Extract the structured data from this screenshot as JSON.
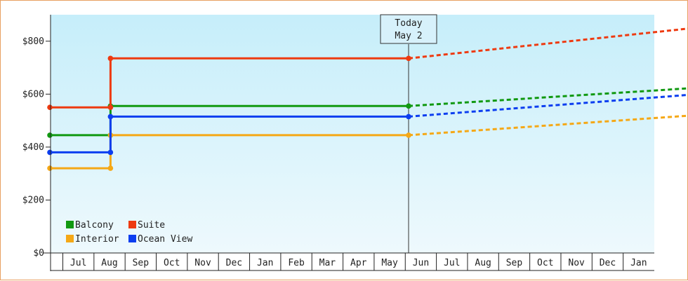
{
  "chart_data": {
    "type": "line",
    "title": "",
    "xlabel": "",
    "ylabel": "",
    "ylim": [
      0,
      900
    ],
    "yticks": [
      0,
      200,
      400,
      600,
      800
    ],
    "ytick_labels": [
      "$0",
      "$200",
      "$400",
      "$600",
      "$800"
    ],
    "month_labels": [
      "Jul",
      "Aug",
      "Sep",
      "Oct",
      "Nov",
      "Dec",
      "Jan",
      "Feb",
      "Mar",
      "Apr",
      "May",
      "Jun",
      "Jul",
      "Aug",
      "Sep",
      "Oct",
      "Nov",
      "Dec",
      "Jan"
    ],
    "today_index": 10,
    "today_label_line1": "Today",
    "today_label_line2": "May 2",
    "background": "light-blue gradient",
    "grid": false,
    "legend_position": "bottom-left",
    "series": [
      {
        "name": "Balcony",
        "color": "#119911",
        "historical": [
          [
            0,
            445
          ],
          [
            1.69,
            445
          ],
          [
            1.69,
            555
          ],
          [
            10,
            555
          ]
        ],
        "forecast": [
          [
            10,
            555
          ],
          [
            19,
            632
          ]
        ]
      },
      {
        "name": "Suite",
        "color": "#ee3a10",
        "historical": [
          [
            0,
            550
          ],
          [
            1.69,
            550
          ],
          [
            1.69,
            735
          ],
          [
            10,
            735
          ]
        ],
        "forecast": [
          [
            10,
            735
          ],
          [
            19,
            865
          ]
        ]
      },
      {
        "name": "Interior",
        "color": "#f5a816",
        "historical": [
          [
            0,
            320
          ],
          [
            1.69,
            320
          ],
          [
            1.69,
            445
          ],
          [
            10,
            445
          ]
        ],
        "forecast": [
          [
            10,
            445
          ],
          [
            19,
            530
          ]
        ]
      },
      {
        "name": "Ocean View",
        "color": "#0c3ef0",
        "historical": [
          [
            0,
            380
          ],
          [
            1.69,
            380
          ],
          [
            1.69,
            515
          ],
          [
            10,
            515
          ]
        ],
        "forecast": [
          [
            10,
            515
          ],
          [
            19,
            610
          ]
        ]
      }
    ]
  }
}
